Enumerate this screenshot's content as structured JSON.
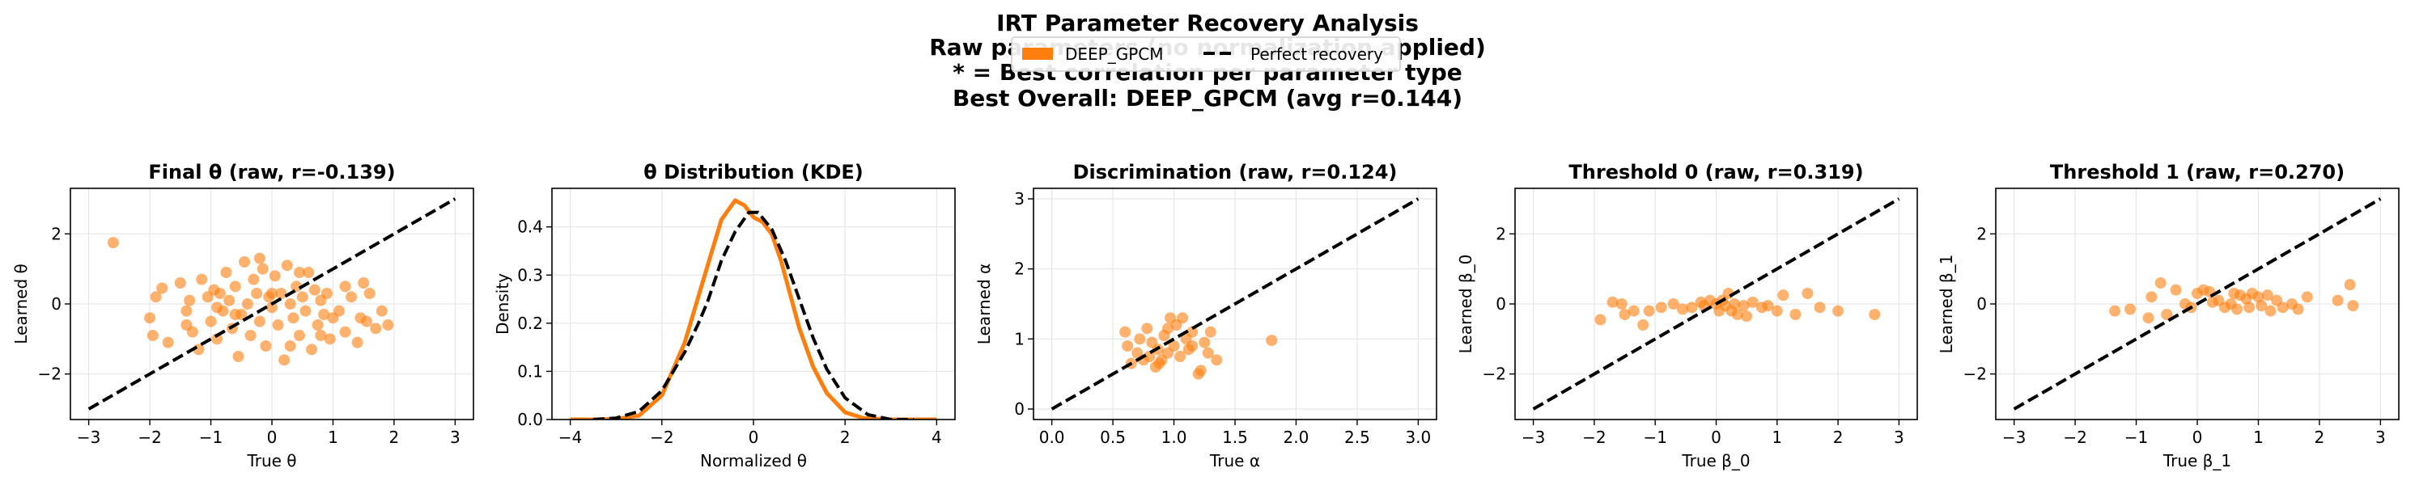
{
  "figure": {
    "title_lines": [
      "IRT Parameter Recovery Analysis",
      "Raw parameters (no normalization applied)",
      "* = Best correlation per parameter type",
      "Best Overall: DEEP_GPCM (avg r=0.144)"
    ],
    "legend": [
      {
        "label": "DEEP_GPCM",
        "kind": "patch",
        "color": "#ff7f0e"
      },
      {
        "label": "Perfect recovery",
        "kind": "dashed-line",
        "color": "#000000"
      }
    ],
    "colors": {
      "model": "#ff7f0e",
      "reference": "#000000"
    }
  },
  "chart_data": [
    {
      "type": "scatter",
      "title": "Final θ (raw, r=-0.139)",
      "xlabel": "True θ",
      "ylabel": "Learned θ",
      "xlim": [
        -3.3,
        3.3
      ],
      "ylim": [
        -3.3,
        3.3
      ],
      "xticks": [
        -3,
        -2,
        -1,
        0,
        1,
        2,
        3
      ],
      "yticks": [
        -2,
        0,
        2
      ],
      "grid": true,
      "reference_line": [
        [
          -3,
          -3
        ],
        [
          3,
          3
        ]
      ],
      "points": [
        [
          -2.6,
          1.75
        ],
        [
          -2.0,
          -0.4
        ],
        [
          -1.9,
          0.2
        ],
        [
          -1.8,
          0.45
        ],
        [
          -1.95,
          -0.9
        ],
        [
          -1.7,
          -1.1
        ],
        [
          -1.5,
          0.6
        ],
        [
          -1.4,
          -0.2
        ],
        [
          -1.35,
          0.1
        ],
        [
          -1.3,
          -0.8
        ],
        [
          -1.2,
          -1.3
        ],
        [
          -1.15,
          0.7
        ],
        [
          -1.05,
          0.2
        ],
        [
          -1.0,
          -0.5
        ],
        [
          -0.95,
          0.4
        ],
        [
          -0.9,
          -1.0
        ],
        [
          -0.85,
          0.3
        ],
        [
          -0.8,
          -0.2
        ],
        [
          -0.75,
          0.9
        ],
        [
          -0.7,
          0.1
        ],
        [
          -0.65,
          -0.7
        ],
        [
          -0.6,
          0.5
        ],
        [
          -0.55,
          -1.5
        ],
        [
          -0.5,
          -0.3
        ],
        [
          -0.45,
          1.2
        ],
        [
          -0.4,
          0.0
        ],
        [
          -0.35,
          -0.9
        ],
        [
          -0.3,
          0.7
        ],
        [
          -0.25,
          0.3
        ],
        [
          -0.2,
          -0.5
        ],
        [
          -0.15,
          1.0
        ],
        [
          -0.1,
          -1.2
        ],
        [
          -0.05,
          0.2
        ],
        [
          0.0,
          -0.1
        ],
        [
          0.05,
          0.8
        ],
        [
          0.1,
          -0.6
        ],
        [
          0.15,
          0.3
        ],
        [
          0.2,
          -1.6
        ],
        [
          0.25,
          1.1
        ],
        [
          0.3,
          0.0
        ],
        [
          0.35,
          -0.4
        ],
        [
          0.4,
          0.5
        ],
        [
          0.45,
          -0.9
        ],
        [
          0.5,
          0.2
        ],
        [
          0.55,
          -0.2
        ],
        [
          0.6,
          0.9
        ],
        [
          0.65,
          -1.3
        ],
        [
          0.7,
          0.4
        ],
        [
          0.75,
          -0.6
        ],
        [
          0.8,
          0.1
        ],
        [
          0.85,
          -0.3
        ],
        [
          0.9,
          0.3
        ],
        [
          0.95,
          -1.0
        ],
        [
          1.0,
          -0.4
        ],
        [
          1.1,
          -0.2
        ],
        [
          1.2,
          -0.8
        ],
        [
          1.3,
          0.2
        ],
        [
          1.4,
          -1.1
        ],
        [
          1.5,
          0.6
        ],
        [
          1.55,
          -0.5
        ],
        [
          1.6,
          0.3
        ],
        [
          1.7,
          -0.7
        ],
        [
          1.8,
          -0.2
        ],
        [
          1.9,
          -0.6
        ],
        [
          -0.6,
          -0.3
        ],
        [
          0.45,
          0.9
        ],
        [
          1.2,
          0.5
        ],
        [
          -1.4,
          -0.6
        ],
        [
          0.0,
          0.3
        ],
        [
          -0.2,
          1.3
        ],
        [
          0.8,
          -0.9
        ],
        [
          1.45,
          -0.4
        ],
        [
          -0.9,
          -0.1
        ],
        [
          0.3,
          -1.2
        ]
      ]
    },
    {
      "type": "line",
      "title": "θ Distribution (KDE)",
      "xlabel": "Normalized θ",
      "ylabel": "Density",
      "xlim": [
        -4.4,
        4.4
      ],
      "ylim": [
        0,
        0.48
      ],
      "xticks": [
        -4,
        -2,
        0,
        2,
        4
      ],
      "yticks": [
        0.0,
        0.1,
        0.2,
        0.3,
        0.4
      ],
      "grid": true,
      "series": [
        {
          "style": "solid",
          "color": "#ff7f0e",
          "points": [
            [
              -4.0,
              0.0
            ],
            [
              -3.5,
              0.0
            ],
            [
              -3.0,
              0.001
            ],
            [
              -2.5,
              0.008
            ],
            [
              -2.0,
              0.05
            ],
            [
              -1.5,
              0.16
            ],
            [
              -1.0,
              0.32
            ],
            [
              -0.7,
              0.415
            ],
            [
              -0.4,
              0.455
            ],
            [
              -0.2,
              0.445
            ],
            [
              0.0,
              0.42
            ],
            [
              0.2,
              0.41
            ],
            [
              0.4,
              0.385
            ],
            [
              0.6,
              0.33
            ],
            [
              0.8,
              0.26
            ],
            [
              1.0,
              0.19
            ],
            [
              1.3,
              0.11
            ],
            [
              1.6,
              0.055
            ],
            [
              2.0,
              0.015
            ],
            [
              2.4,
              0.003
            ],
            [
              3.0,
              0.0
            ],
            [
              3.5,
              0.0
            ],
            [
              4.0,
              0.0
            ]
          ]
        },
        {
          "style": "dashed",
          "color": "#000000",
          "points": [
            [
              -3.5,
              0.0
            ],
            [
              -3.0,
              0.003
            ],
            [
              -2.5,
              0.017
            ],
            [
              -2.0,
              0.06
            ],
            [
              -1.5,
              0.14
            ],
            [
              -1.2,
              0.2
            ],
            [
              -1.0,
              0.245
            ],
            [
              -0.7,
              0.33
            ],
            [
              -0.4,
              0.39
            ],
            [
              -0.1,
              0.43
            ],
            [
              0.1,
              0.43
            ],
            [
              0.4,
              0.395
            ],
            [
              0.7,
              0.33
            ],
            [
              1.0,
              0.25
            ],
            [
              1.3,
              0.17
            ],
            [
              1.6,
              0.105
            ],
            [
              2.0,
              0.045
            ],
            [
              2.5,
              0.01
            ],
            [
              3.0,
              0.0
            ],
            [
              3.5,
              0.0
            ]
          ]
        }
      ]
    },
    {
      "type": "scatter",
      "title": "Discrimination (raw, r=0.124)",
      "xlabel": "True α",
      "ylabel": "Learned α",
      "xlim": [
        -0.15,
        3.15
      ],
      "ylim": [
        -0.15,
        3.15
      ],
      "xticks": [
        0.0,
        0.5,
        1.0,
        1.5,
        2.0,
        2.5,
        3.0
      ],
      "yticks": [
        0,
        1,
        2,
        3
      ],
      "grid": true,
      "reference_line": [
        [
          0,
          0
        ],
        [
          3,
          3
        ]
      ],
      "points": [
        [
          0.6,
          1.1
        ],
        [
          0.62,
          0.9
        ],
        [
          0.65,
          0.65
        ],
        [
          0.7,
          0.8
        ],
        [
          0.72,
          1.0
        ],
        [
          0.75,
          0.7
        ],
        [
          0.78,
          1.15
        ],
        [
          0.8,
          0.75
        ],
        [
          0.82,
          0.95
        ],
        [
          0.85,
          0.6
        ],
        [
          0.87,
          0.85
        ],
        [
          0.9,
          0.7
        ],
        [
          0.92,
          1.05
        ],
        [
          0.95,
          0.8
        ],
        [
          0.97,
          1.3
        ],
        [
          1.0,
          0.9
        ],
        [
          1.02,
          1.2
        ],
        [
          1.05,
          0.75
        ],
        [
          1.07,
          1.3
        ],
        [
          1.1,
          1.0
        ],
        [
          1.12,
          0.85
        ],
        [
          1.15,
          1.1
        ],
        [
          1.2,
          0.5
        ],
        [
          1.22,
          0.55
        ],
        [
          1.25,
          0.95
        ],
        [
          1.28,
          0.8
        ],
        [
          1.3,
          1.1
        ],
        [
          1.35,
          0.7
        ],
        [
          1.8,
          0.98
        ],
        [
          0.88,
          0.65
        ],
        [
          0.95,
          1.15
        ],
        [
          1.15,
          0.9
        ]
      ]
    },
    {
      "type": "scatter",
      "title": "Threshold 0 (raw, r=0.319)",
      "xlabel": "True β_0",
      "ylabel": "Learned β_0",
      "xlim": [
        -3.3,
        3.3
      ],
      "ylim": [
        -3.3,
        3.3
      ],
      "xticks": [
        -3,
        -2,
        -1,
        0,
        1,
        2,
        3
      ],
      "yticks": [
        -2,
        0,
        2
      ],
      "grid": true,
      "reference_line": [
        [
          -3,
          -3
        ],
        [
          3,
          3
        ]
      ],
      "points": [
        [
          -1.9,
          -0.45
        ],
        [
          -1.7,
          0.05
        ],
        [
          -1.55,
          0.0
        ],
        [
          -1.5,
          -0.3
        ],
        [
          -1.35,
          -0.2
        ],
        [
          -1.2,
          -0.6
        ],
        [
          -1.1,
          -0.2
        ],
        [
          -0.9,
          -0.1
        ],
        [
          -0.7,
          0.0
        ],
        [
          -0.55,
          -0.15
        ],
        [
          -0.4,
          -0.1
        ],
        [
          -0.25,
          0.05
        ],
        [
          -0.1,
          0.1
        ],
        [
          0.0,
          0.0
        ],
        [
          0.05,
          -0.2
        ],
        [
          0.1,
          0.1
        ],
        [
          0.15,
          -0.05
        ],
        [
          0.2,
          0.3
        ],
        [
          0.25,
          -0.2
        ],
        [
          0.3,
          0.0
        ],
        [
          0.35,
          -0.3
        ],
        [
          0.45,
          -0.05
        ],
        [
          0.5,
          -0.35
        ],
        [
          0.6,
          0.05
        ],
        [
          0.75,
          -0.1
        ],
        [
          0.85,
          -0.05
        ],
        [
          1.0,
          -0.2
        ],
        [
          1.1,
          0.25
        ],
        [
          1.3,
          -0.3
        ],
        [
          1.5,
          0.3
        ],
        [
          1.7,
          -0.1
        ],
        [
          2.0,
          -0.2
        ],
        [
          2.6,
          -0.3
        ],
        [
          -0.2,
          -0.05
        ]
      ]
    },
    {
      "type": "scatter",
      "title": "Threshold 1 (raw, r=0.270)",
      "xlabel": "True β_1",
      "ylabel": "Learned β_1",
      "xlim": [
        -3.3,
        3.3
      ],
      "ylim": [
        -3.3,
        3.3
      ],
      "xticks": [
        -3,
        -2,
        -1,
        0,
        1,
        2,
        3
      ],
      "yticks": [
        -2,
        0,
        2
      ],
      "grid": true,
      "reference_line": [
        [
          -3,
          -3
        ],
        [
          3,
          3
        ]
      ],
      "points": [
        [
          -1.35,
          -0.2
        ],
        [
          -1.1,
          -0.15
        ],
        [
          -0.8,
          -0.4
        ],
        [
          -0.75,
          0.2
        ],
        [
          -0.6,
          0.6
        ],
        [
          -0.5,
          -0.3
        ],
        [
          -0.35,
          0.4
        ],
        [
          -0.2,
          0.0
        ],
        [
          -0.1,
          -0.1
        ],
        [
          0.0,
          0.3
        ],
        [
          0.1,
          0.4
        ],
        [
          0.2,
          0.35
        ],
        [
          0.35,
          0.1
        ],
        [
          0.45,
          -0.1
        ],
        [
          0.55,
          0.0
        ],
        [
          0.6,
          0.3
        ],
        [
          0.7,
          0.25
        ],
        [
          0.8,
          0.15
        ],
        [
          0.85,
          -0.1
        ],
        [
          0.9,
          0.3
        ],
        [
          1.0,
          0.2
        ],
        [
          1.05,
          -0.05
        ],
        [
          1.15,
          0.25
        ],
        [
          1.2,
          -0.2
        ],
        [
          1.3,
          0.1
        ],
        [
          1.4,
          -0.1
        ],
        [
          1.55,
          0.0
        ],
        [
          1.65,
          -0.15
        ],
        [
          1.8,
          0.2
        ],
        [
          2.3,
          0.1
        ],
        [
          2.5,
          0.55
        ],
        [
          2.55,
          -0.05
        ],
        [
          0.25,
          0.05
        ],
        [
          0.65,
          -0.15
        ]
      ]
    }
  ]
}
